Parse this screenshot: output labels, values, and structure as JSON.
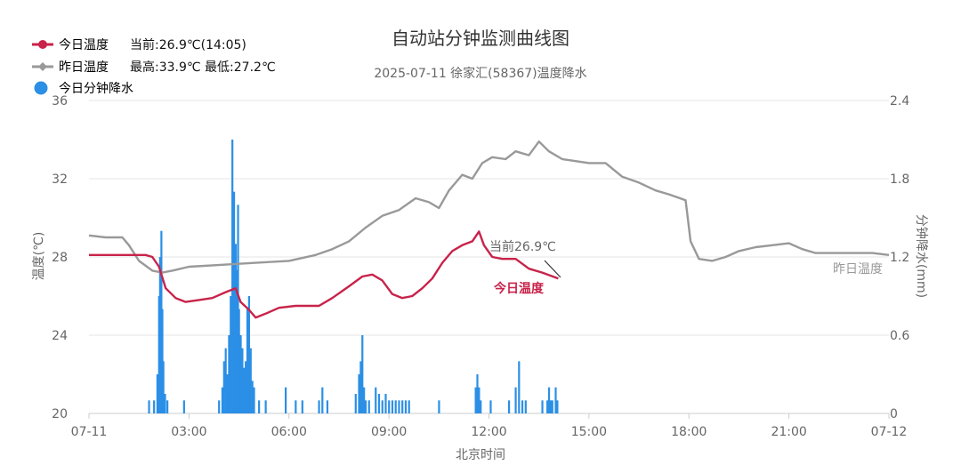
{
  "chart_data": {
    "type": "line",
    "title": "自动站分钟监测曲线图",
    "subtitle": "2025-07-11 徐家汇(58367)温度降水",
    "xlabel": "北京时间",
    "ylabel_left": "温度(℃)",
    "ylabel_right": "分钟降水(mm)",
    "x_ticks": [
      "07-11",
      "03:00",
      "06:00",
      "09:00",
      "12:00",
      "15:00",
      "18:00",
      "21:00",
      "07-12"
    ],
    "y_left_ticks": [
      "20",
      "24",
      "28",
      "32",
      "36"
    ],
    "y_right_ticks": [
      "0",
      "0.6",
      "1.2",
      "1.8",
      "2.4"
    ],
    "ylim_left": [
      20,
      36
    ],
    "ylim_right": [
      0,
      2.4
    ],
    "xlim_hours": [
      0,
      24
    ],
    "grid": true,
    "legend_position": "top-left",
    "legend": [
      {
        "label": "今日温度",
        "stat": "当前:26.9℃(14:05)",
        "color": "#c8234a"
      },
      {
        "label": "昨日温度",
        "stat": "最高:33.9℃ 最低:27.2℃",
        "color": "#999999"
      },
      {
        "label": "今日分钟降水",
        "stat": "",
        "color": "#2b8fe6"
      }
    ],
    "annotations": {
      "current": "当前26.9℃",
      "today_label": "今日温度",
      "yesterday_label": "昨日温度"
    },
    "series": [
      {
        "name": "今日温度",
        "color": "#c8234a",
        "axis": "left",
        "points": [
          [
            0,
            28.1
          ],
          [
            1,
            28.1
          ],
          [
            1.7,
            28.1
          ],
          [
            1.9,
            28.0
          ],
          [
            2.1,
            27.5
          ],
          [
            2.3,
            26.4
          ],
          [
            2.6,
            25.9
          ],
          [
            2.9,
            25.7
          ],
          [
            3.3,
            25.8
          ],
          [
            3.7,
            25.9
          ],
          [
            4.1,
            26.2
          ],
          [
            4.4,
            26.4
          ],
          [
            4.55,
            25.7
          ],
          [
            4.8,
            25.3
          ],
          [
            5.0,
            24.9
          ],
          [
            5.3,
            25.1
          ],
          [
            5.7,
            25.4
          ],
          [
            6.2,
            25.5
          ],
          [
            6.6,
            25.5
          ],
          [
            6.9,
            25.5
          ],
          [
            7.3,
            25.9
          ],
          [
            7.8,
            26.5
          ],
          [
            8.2,
            27.0
          ],
          [
            8.5,
            27.1
          ],
          [
            8.8,
            26.8
          ],
          [
            9.1,
            26.1
          ],
          [
            9.4,
            25.9
          ],
          [
            9.7,
            26.0
          ],
          [
            10.0,
            26.4
          ],
          [
            10.3,
            26.9
          ],
          [
            10.6,
            27.7
          ],
          [
            10.9,
            28.3
          ],
          [
            11.2,
            28.6
          ],
          [
            11.5,
            28.8
          ],
          [
            11.7,
            29.3
          ],
          [
            11.85,
            28.6
          ],
          [
            12.1,
            28.0
          ],
          [
            12.4,
            27.9
          ],
          [
            12.8,
            27.9
          ],
          [
            13.2,
            27.4
          ],
          [
            13.6,
            27.2
          ],
          [
            14.08,
            26.9
          ]
        ]
      },
      {
        "name": "昨日温度",
        "color": "#999999",
        "axis": "left",
        "points": [
          [
            0,
            29.1
          ],
          [
            0.5,
            29.0
          ],
          [
            1.0,
            29.0
          ],
          [
            1.2,
            28.6
          ],
          [
            1.5,
            27.8
          ],
          [
            1.9,
            27.3
          ],
          [
            2.2,
            27.2
          ],
          [
            2.5,
            27.3
          ],
          [
            3.0,
            27.5
          ],
          [
            4.0,
            27.6
          ],
          [
            5.0,
            27.7
          ],
          [
            6.0,
            27.8
          ],
          [
            6.8,
            28.1
          ],
          [
            7.3,
            28.4
          ],
          [
            7.8,
            28.8
          ],
          [
            8.3,
            29.5
          ],
          [
            8.8,
            30.1
          ],
          [
            9.3,
            30.4
          ],
          [
            9.8,
            31.0
          ],
          [
            10.2,
            30.8
          ],
          [
            10.5,
            30.5
          ],
          [
            10.8,
            31.4
          ],
          [
            11.2,
            32.2
          ],
          [
            11.5,
            32.0
          ],
          [
            11.8,
            32.8
          ],
          [
            12.1,
            33.1
          ],
          [
            12.5,
            33.0
          ],
          [
            12.8,
            33.4
          ],
          [
            13.2,
            33.2
          ],
          [
            13.5,
            33.9
          ],
          [
            13.8,
            33.4
          ],
          [
            14.2,
            33.0
          ],
          [
            14.6,
            32.9
          ],
          [
            15.0,
            32.8
          ],
          [
            15.5,
            32.8
          ],
          [
            16.0,
            32.1
          ],
          [
            16.5,
            31.8
          ],
          [
            17.0,
            31.4
          ],
          [
            17.4,
            31.2
          ],
          [
            17.9,
            30.9
          ],
          [
            18.05,
            28.8
          ],
          [
            18.3,
            27.9
          ],
          [
            18.7,
            27.8
          ],
          [
            19.1,
            28.0
          ],
          [
            19.5,
            28.3
          ],
          [
            20.0,
            28.5
          ],
          [
            20.5,
            28.6
          ],
          [
            21.0,
            28.7
          ],
          [
            21.4,
            28.4
          ],
          [
            21.8,
            28.2
          ],
          [
            22.4,
            28.2
          ],
          [
            23.0,
            28.2
          ],
          [
            23.5,
            28.2
          ],
          [
            24.0,
            28.1
          ]
        ]
      },
      {
        "name": "今日分钟降水",
        "color": "#2b8fe6",
        "axis": "right",
        "type": "bar",
        "bars": [
          [
            1.8,
            0.1
          ],
          [
            1.95,
            0.1
          ],
          [
            2.05,
            0.3
          ],
          [
            2.1,
            0.9
          ],
          [
            2.13,
            1.2
          ],
          [
            2.17,
            1.4
          ],
          [
            2.2,
            0.8
          ],
          [
            2.23,
            0.4
          ],
          [
            2.28,
            0.15
          ],
          [
            2.35,
            0.1
          ],
          [
            2.85,
            0.1
          ],
          [
            3.9,
            0.1
          ],
          [
            4.0,
            0.2
          ],
          [
            4.05,
            0.4
          ],
          [
            4.1,
            0.5
          ],
          [
            4.15,
            0.3
          ],
          [
            4.2,
            0.6
          ],
          [
            4.25,
            0.9
          ],
          [
            4.3,
            2.1
          ],
          [
            4.35,
            1.7
          ],
          [
            4.4,
            1.3
          ],
          [
            4.43,
            1.1
          ],
          [
            4.47,
            1.6
          ],
          [
            4.5,
            0.8
          ],
          [
            4.55,
            0.6
          ],
          [
            4.6,
            0.5
          ],
          [
            4.65,
            0.35
          ],
          [
            4.7,
            0.4
          ],
          [
            4.75,
            0.8
          ],
          [
            4.8,
            0.9
          ],
          [
            4.85,
            0.5
          ],
          [
            4.9,
            0.25
          ],
          [
            4.95,
            0.2
          ],
          [
            5.1,
            0.1
          ],
          [
            5.3,
            0.1
          ],
          [
            5.9,
            0.2
          ],
          [
            6.2,
            0.1
          ],
          [
            6.4,
            0.1
          ],
          [
            6.9,
            0.1
          ],
          [
            7.0,
            0.2
          ],
          [
            7.15,
            0.1
          ],
          [
            8.0,
            0.15
          ],
          [
            8.1,
            0.3
          ],
          [
            8.15,
            0.4
          ],
          [
            8.2,
            0.6
          ],
          [
            8.25,
            0.2
          ],
          [
            8.3,
            0.1
          ],
          [
            8.4,
            0.1
          ],
          [
            8.6,
            0.2
          ],
          [
            8.7,
            0.15
          ],
          [
            8.8,
            0.1
          ],
          [
            8.9,
            0.15
          ],
          [
            9.0,
            0.1
          ],
          [
            9.1,
            0.1
          ],
          [
            9.2,
            0.1
          ],
          [
            9.3,
            0.1
          ],
          [
            9.4,
            0.1
          ],
          [
            9.5,
            0.1
          ],
          [
            9.6,
            0.1
          ],
          [
            10.5,
            0.1
          ],
          [
            11.6,
            0.2
          ],
          [
            11.65,
            0.3
          ],
          [
            11.7,
            0.2
          ],
          [
            11.75,
            0.1
          ],
          [
            12.05,
            0.1
          ],
          [
            12.6,
            0.1
          ],
          [
            12.8,
            0.2
          ],
          [
            12.9,
            0.4
          ],
          [
            13.0,
            0.1
          ],
          [
            13.1,
            0.1
          ],
          [
            13.6,
            0.1
          ],
          [
            13.75,
            0.1
          ],
          [
            13.8,
            0.2
          ],
          [
            13.85,
            0.1
          ],
          [
            13.9,
            0.1
          ],
          [
            14.0,
            0.2
          ],
          [
            14.05,
            0.1
          ]
        ]
      }
    ]
  }
}
